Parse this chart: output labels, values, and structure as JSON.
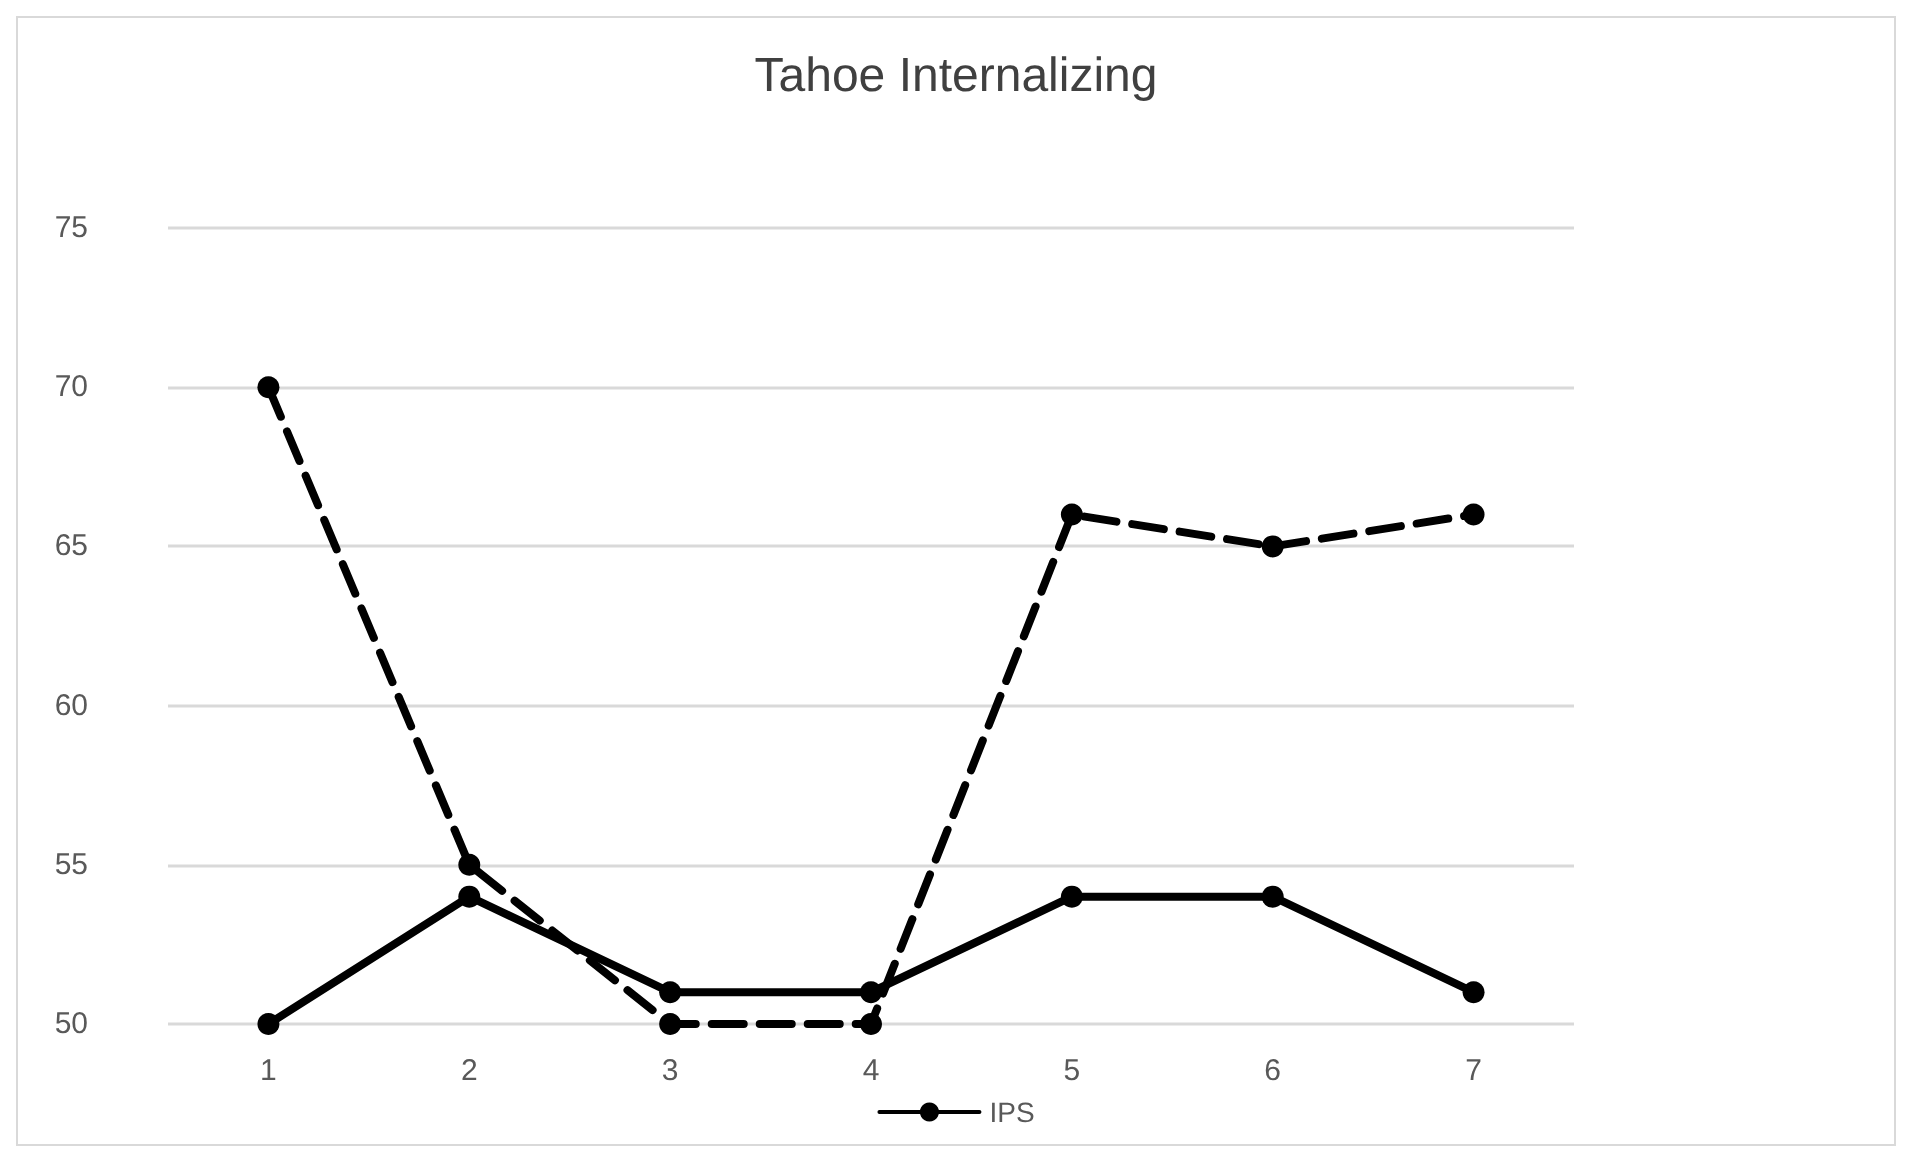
{
  "chart_data": {
    "type": "line",
    "title": "Tahoe Internalizing",
    "categories": [
      "1",
      "2",
      "3",
      "4",
      "5",
      "6",
      "7"
    ],
    "series": [
      {
        "name": "IPS",
        "color": "#000000",
        "line_style": "solid",
        "values": [
          50,
          54,
          51,
          51,
          54,
          54,
          51
        ]
      },
      {
        "color": "#000000",
        "line_style": "dashed",
        "values": [
          70,
          55,
          50,
          50,
          66,
          65,
          66
        ]
      }
    ],
    "ylim": [
      50,
      75
    ],
    "yticks": [
      50,
      55,
      60,
      65,
      70,
      75
    ],
    "grid": "y",
    "legend": "bottom",
    "marker": "circle"
  }
}
